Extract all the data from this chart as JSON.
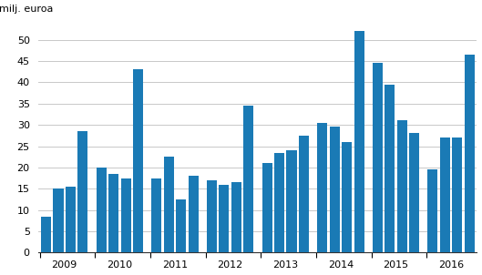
{
  "values": [
    8.5,
    15.0,
    15.5,
    28.5,
    20.0,
    18.5,
    17.5,
    43.0,
    17.5,
    22.5,
    12.5,
    18.0,
    17.0,
    16.0,
    16.5,
    34.5,
    21.0,
    23.5,
    24.0,
    27.5,
    30.5,
    29.5,
    26.0,
    52.0,
    44.5,
    39.5,
    31.0,
    28.0,
    19.5,
    27.0,
    27.0,
    46.5
  ],
  "year_labels": [
    "2009",
    "2010",
    "2011",
    "2012",
    "2013",
    "2014",
    "2015",
    "2016"
  ],
  "bar_color": "#1a7ab5",
  "ylabel": "milj. euroa",
  "ylim": [
    0,
    55
  ],
  "yticks": [
    0,
    5,
    10,
    15,
    20,
    25,
    30,
    35,
    40,
    45,
    50
  ],
  "background_color": "#ffffff",
  "grid_color": "#c8c8c8"
}
